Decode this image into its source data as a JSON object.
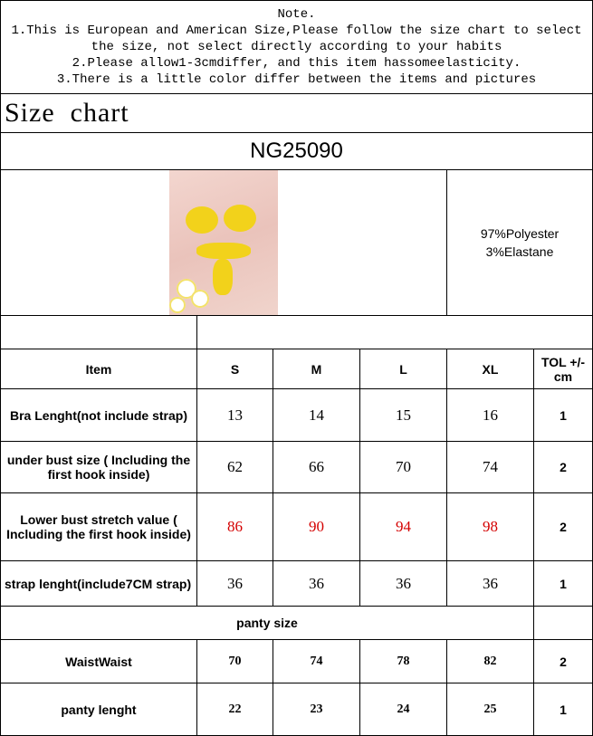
{
  "note": {
    "heading": "Note.",
    "line1": "1.This is European and American Size,Please follow the size chart to select the size, not select directly according to your habits",
    "line2": "2.Please allow1-3cmdiffer, and this item hassomeelasticity.",
    "line3": "3.There is a little color differ between the items and pictures"
  },
  "title": "Size  chart",
  "product_code": "NG25090",
  "material": {
    "line1": "97%Polyester",
    "line2": "3%Elastane"
  },
  "table": {
    "headers": [
      "Item",
      "S",
      "M",
      "L",
      "XL",
      "TOL +/-cm"
    ],
    "rows": [
      {
        "label": "Bra Lenght(not include strap)",
        "values": [
          "13",
          "14",
          "15",
          "16"
        ],
        "tol": "1"
      },
      {
        "label": "under bust size ( Including the first hook inside)",
        "values": [
          "62",
          "66",
          "70",
          "74"
        ],
        "tol": "2"
      },
      {
        "label": "Lower bust stretch value ( Including the first hook inside)",
        "values": [
          "86",
          "90",
          "94",
          "98"
        ],
        "tol": "2"
      },
      {
        "label": "strap lenght(include7CM strap)",
        "values": [
          "36",
          "36",
          "36",
          "36"
        ],
        "tol": "1"
      }
    ],
    "panty_heading": "panty size",
    "panty_rows": [
      {
        "label": "WaistWaist",
        "values": [
          "70",
          "74",
          "78",
          "82"
        ],
        "tol": "2"
      },
      {
        "label": "panty lenght",
        "values": [
          "22",
          "23",
          "24",
          "25"
        ],
        "tol": "1"
      }
    ]
  },
  "colors": {
    "highlight_values": "#d40000"
  }
}
